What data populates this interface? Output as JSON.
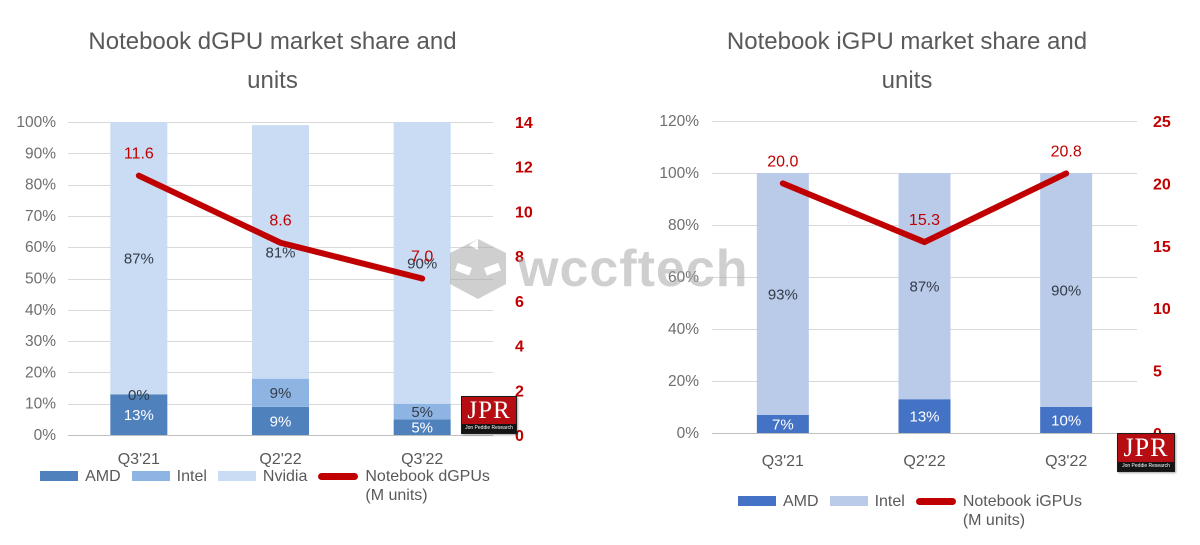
{
  "watermark": {
    "text": "wccftech"
  },
  "chart_data": [
    {
      "type": "bar+line",
      "title": "Notebook dGPU market share and units",
      "title_line1": "Notebook dGPU market share and",
      "title_line2": "units",
      "categories": [
        "Q3'21",
        "Q2'22",
        "Q3'22"
      ],
      "stacked_percent_series": [
        {
          "name": "AMD",
          "color": "#4F81BD",
          "label_color": "#FFFFFF",
          "values": [
            13,
            9,
            5
          ]
        },
        {
          "name": "Intel",
          "color": "#8EB4E3",
          "label_color": "#333B46",
          "values": [
            0,
            9,
            5
          ]
        },
        {
          "name": "Nvidia",
          "color": "#C9DCF3",
          "label_color": "#333B46",
          "values": [
            87,
            81,
            90
          ]
        }
      ],
      "line_series": {
        "name": "Notebook dGPUs (M units)",
        "color": "#C00000",
        "values": [
          11.6,
          8.6,
          7.0
        ]
      },
      "left_axis": {
        "ticks": [
          "0%",
          "10%",
          "20%",
          "30%",
          "40%",
          "50%",
          "60%",
          "70%",
          "80%",
          "90%",
          "100%"
        ],
        "min": 0,
        "max": 100,
        "grid": true
      },
      "right_axis": {
        "ticks": [
          "0",
          "2",
          "4",
          "6",
          "8",
          "10",
          "12",
          "14"
        ],
        "min": 0,
        "max": 14,
        "color": "#C00000"
      },
      "legend": [
        {
          "type": "swatch",
          "color": "#4F81BD",
          "label": "AMD"
        },
        {
          "type": "swatch",
          "color": "#8EB4E3",
          "label": "Intel"
        },
        {
          "type": "swatch",
          "color": "#C9DCF3",
          "label": "Nvidia"
        },
        {
          "type": "line",
          "color": "#C00000",
          "label": "Notebook dGPUs",
          "label2": "(M units)"
        }
      ],
      "logo": {
        "text": "JPR",
        "subtext": "Jon Peddie Research"
      }
    },
    {
      "type": "bar+line",
      "title": "Notebook iGPU market share and units",
      "title_line1": "Notebook iGPU market share and",
      "title_line2": "units",
      "categories": [
        "Q3'21",
        "Q2'22",
        "Q3'22"
      ],
      "stacked_percent_series": [
        {
          "name": "AMD",
          "color": "#4472C4",
          "label_color": "#FFFFFF",
          "values": [
            7,
            13,
            10
          ]
        },
        {
          "name": "Intel",
          "color": "#B9CBE8",
          "label_color": "#333B46",
          "values": [
            93,
            87,
            90
          ]
        }
      ],
      "line_series": {
        "name": "Notebook iGPUs (M units)",
        "color": "#C00000",
        "values": [
          20.0,
          15.3,
          20.8
        ]
      },
      "left_axis": {
        "ticks": [
          "0%",
          "20%",
          "40%",
          "60%",
          "80%",
          "100%",
          "120%"
        ],
        "min": 0,
        "max": 120,
        "grid": true
      },
      "right_axis": {
        "ticks": [
          "0",
          "5",
          "10",
          "15",
          "20",
          "25"
        ],
        "min": 0,
        "max": 25,
        "color": "#C00000"
      },
      "legend": [
        {
          "type": "swatch",
          "color": "#4472C4",
          "label": "AMD"
        },
        {
          "type": "swatch",
          "color": "#B9CBE8",
          "label": "Intel"
        },
        {
          "type": "line",
          "color": "#C00000",
          "label": "Notebook iGPUs",
          "label2": "(M units)"
        }
      ],
      "logo": {
        "text": "JPR",
        "subtext": "Jon Peddie Research"
      }
    }
  ]
}
